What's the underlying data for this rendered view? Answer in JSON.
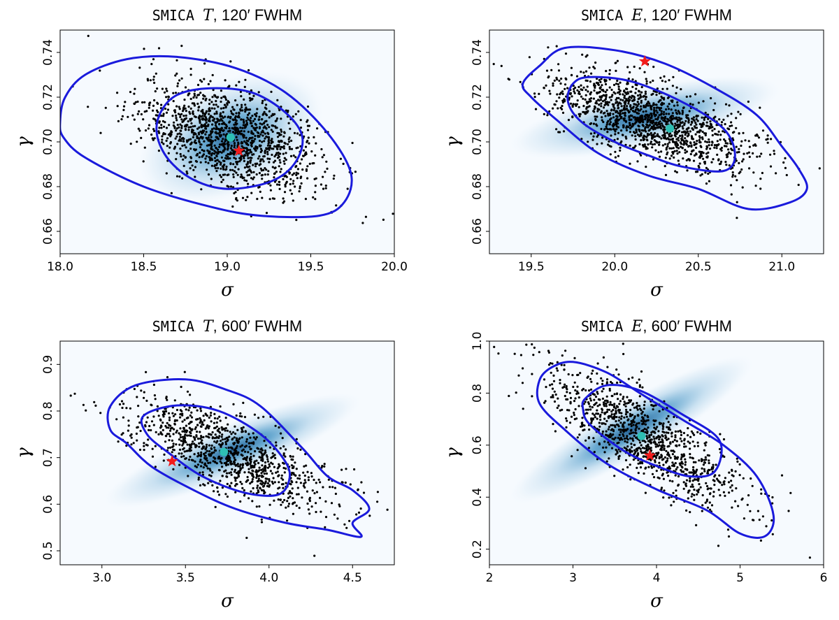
{
  "chart_data": [
    {
      "type": "scatter",
      "title": {
        "prefix": "SMICA",
        "field": "T",
        "suffix": ", 120′ FWHM"
      },
      "xlabel": "σ",
      "ylabel": "γ",
      "xlim": [
        18.0,
        20.0
      ],
      "ylim": [
        0.65,
        0.75
      ],
      "xticks": [
        18.0,
        18.5,
        19.0,
        19.5,
        20.0
      ],
      "xtick_labels": [
        "18.0",
        "18.5",
        "19.0",
        "19.5",
        "20.0"
      ],
      "yticks": [
        0.66,
        0.68,
        0.7,
        0.72,
        0.74
      ],
      "ytick_labels": [
        "0.66",
        "0.68",
        "0.70",
        "0.72",
        "0.74"
      ],
      "scatter": {
        "center": [
          19.02,
          0.702
        ],
        "spread": [
          0.27,
          0.012
        ],
        "rho": -0.45,
        "n": 1400
      },
      "density": {
        "center": [
          19.02,
          0.702
        ],
        "radii": [
          0.3,
          0.013
        ],
        "angle": -25
      },
      "contours": [
        {
          "points": [
            [
              18.0,
              0.709
            ],
            [
              18.03,
              0.72
            ],
            [
              18.15,
              0.73
            ],
            [
              18.4,
              0.737
            ],
            [
              18.7,
              0.738
            ],
            [
              19.05,
              0.733
            ],
            [
              19.35,
              0.722
            ],
            [
              19.6,
              0.704
            ],
            [
              19.74,
              0.686
            ],
            [
              19.7,
              0.673
            ],
            [
              19.55,
              0.667
            ],
            [
              19.2,
              0.667
            ],
            [
              18.9,
              0.671
            ],
            [
              18.5,
              0.68
            ],
            [
              18.15,
              0.693
            ],
            [
              18.02,
              0.702
            ]
          ]
        },
        {
          "points": [
            [
              18.6,
              0.713
            ],
            [
              18.7,
              0.721
            ],
            [
              18.9,
              0.724
            ],
            [
              19.15,
              0.722
            ],
            [
              19.35,
              0.713
            ],
            [
              19.45,
              0.702
            ],
            [
              19.4,
              0.69
            ],
            [
              19.25,
              0.682
            ],
            [
              19.0,
              0.679
            ],
            [
              18.8,
              0.683
            ],
            [
              18.65,
              0.692
            ],
            [
              18.58,
              0.703
            ]
          ]
        }
      ],
      "mean": [
        19.02,
        0.702
      ],
      "star": [
        19.07,
        0.696
      ]
    },
    {
      "type": "scatter",
      "title": {
        "prefix": "SMICA",
        "field": "E",
        "suffix": ", 120′ FWHM"
      },
      "xlabel": "σ",
      "ylabel": "γ",
      "xlim": [
        19.25,
        21.25
      ],
      "ylim": [
        0.65,
        0.75
      ],
      "xticks": [
        19.5,
        20.0,
        20.5,
        21.0
      ],
      "xtick_labels": [
        "19.5",
        "20.0",
        "20.5",
        "21.0"
      ],
      "yticks": [
        0.66,
        0.68,
        0.7,
        0.72,
        0.74
      ],
      "ytick_labels": [
        "0.66",
        "0.68",
        "0.70",
        "0.72",
        "0.74"
      ],
      "scatter": {
        "center": [
          20.2,
          0.71
        ],
        "spread": [
          0.3,
          0.011
        ],
        "rho": -0.65,
        "n": 1400
      },
      "density": {
        "center": [
          20.18,
          0.711
        ],
        "radii": [
          0.42,
          0.007
        ],
        "angle": -12
      },
      "contours": [
        {
          "points": [
            [
              19.45,
              0.726
            ],
            [
              19.55,
              0.734
            ],
            [
              19.7,
              0.742
            ],
            [
              20.0,
              0.741
            ],
            [
              20.3,
              0.735
            ],
            [
              20.6,
              0.724
            ],
            [
              20.85,
              0.712
            ],
            [
              21.0,
              0.698
            ],
            [
              21.1,
              0.688
            ],
            [
              21.15,
              0.679
            ],
            [
              21.05,
              0.673
            ],
            [
              20.8,
              0.67
            ],
            [
              20.5,
              0.679
            ],
            [
              20.2,
              0.685
            ],
            [
              19.9,
              0.695
            ],
            [
              19.65,
              0.71
            ],
            [
              19.5,
              0.72
            ]
          ]
        },
        {
          "points": [
            [
              19.75,
              0.726
            ],
            [
              19.85,
              0.729
            ],
            [
              20.1,
              0.727
            ],
            [
              20.4,
              0.718
            ],
            [
              20.65,
              0.706
            ],
            [
              20.72,
              0.694
            ],
            [
              20.65,
              0.687
            ],
            [
              20.4,
              0.689
            ],
            [
              20.2,
              0.694
            ],
            [
              20.0,
              0.7
            ],
            [
              19.8,
              0.709
            ],
            [
              19.72,
              0.718
            ]
          ]
        }
      ],
      "mean": [
        20.33,
        0.706
      ],
      "star": [
        20.18,
        0.736
      ]
    },
    {
      "type": "scatter",
      "title": {
        "prefix": "SMICA",
        "field": "T",
        "suffix": ", 600′ FWHM"
      },
      "xlabel": "σ",
      "ylabel": "γ",
      "xlim": [
        2.75,
        4.75
      ],
      "ylim": [
        0.47,
        0.95
      ],
      "xticks": [
        3.0,
        3.5,
        4.0,
        4.5
      ],
      "xtick_labels": [
        "3.0",
        "3.5",
        "4.0",
        "4.5"
      ],
      "yticks": [
        0.5,
        0.6,
        0.7,
        0.8,
        0.9
      ],
      "ytick_labels": [
        "0.5",
        "0.6",
        "0.7",
        "0.8",
        "0.9"
      ],
      "scatter": {
        "center": [
          3.75,
          0.71
        ],
        "spread": [
          0.3,
          0.06
        ],
        "rho": -0.72,
        "n": 1050
      },
      "density": {
        "center": [
          3.78,
          0.715
        ],
        "radii": [
          0.42,
          0.03
        ],
        "angle": -22
      },
      "contours": [
        {
          "points": [
            [
              3.05,
              0.81
            ],
            [
              3.2,
              0.855
            ],
            [
              3.5,
              0.868
            ],
            [
              3.75,
              0.845
            ],
            [
              3.95,
              0.81
            ],
            [
              4.2,
              0.72
            ],
            [
              4.35,
              0.66
            ],
            [
              4.5,
              0.63
            ],
            [
              4.6,
              0.59
            ],
            [
              4.5,
              0.56
            ],
            [
              4.55,
              0.53
            ],
            [
              4.35,
              0.545
            ],
            [
              4.1,
              0.56
            ],
            [
              3.8,
              0.59
            ],
            [
              3.55,
              0.63
            ],
            [
              3.3,
              0.68
            ],
            [
              3.15,
              0.73
            ],
            [
              3.05,
              0.76
            ]
          ]
        },
        {
          "points": [
            [
              3.25,
              0.79
            ],
            [
              3.45,
              0.812
            ],
            [
              3.7,
              0.8
            ],
            [
              3.95,
              0.75
            ],
            [
              4.1,
              0.69
            ],
            [
              4.12,
              0.65
            ],
            [
              4.05,
              0.62
            ],
            [
              3.85,
              0.625
            ],
            [
              3.6,
              0.66
            ],
            [
              3.4,
              0.71
            ],
            [
              3.27,
              0.75
            ]
          ]
        }
      ],
      "mean": [
        3.73,
        0.712
      ],
      "star": [
        3.42,
        0.692
      ]
    },
    {
      "type": "scatter",
      "title": {
        "prefix": "SMICA",
        "field": "E",
        "suffix": ", 600′ FWHM"
      },
      "xlabel": "σ",
      "ylabel": "γ",
      "xlim": [
        2.0,
        6.0
      ],
      "ylim": [
        0.14,
        1.0
      ],
      "xticks": [
        2,
        3,
        4,
        5,
        6
      ],
      "xtick_labels": [
        "2",
        "3",
        "4",
        "5",
        "6"
      ],
      "yticks": [
        0.2,
        0.4,
        0.6,
        0.8,
        1.0
      ],
      "ytick_labels": [
        "0.2",
        "0.4",
        "0.6",
        "0.8",
        "1.0"
      ],
      "scatter": {
        "center": [
          3.82,
          0.63
        ],
        "spread": [
          0.6,
          0.14
        ],
        "rho": -0.8,
        "n": 1100
      },
      "density": {
        "center": [
          3.7,
          0.66
        ],
        "radii": [
          0.85,
          0.055
        ],
        "angle": -30
      },
      "contours": [
        {
          "points": [
            [
              2.6,
              0.85
            ],
            [
              2.75,
              0.9
            ],
            [
              3.0,
              0.92
            ],
            [
              3.4,
              0.88
            ],
            [
              3.8,
              0.8
            ],
            [
              4.3,
              0.7
            ],
            [
              4.8,
              0.6
            ],
            [
              5.2,
              0.48
            ],
            [
              5.4,
              0.33
            ],
            [
              5.3,
              0.25
            ],
            [
              5.0,
              0.26
            ],
            [
              4.6,
              0.35
            ],
            [
              4.0,
              0.43
            ],
            [
              3.4,
              0.53
            ],
            [
              2.9,
              0.66
            ],
            [
              2.6,
              0.76
            ]
          ]
        },
        {
          "points": [
            [
              3.15,
              0.78
            ],
            [
              3.4,
              0.83
            ],
            [
              3.8,
              0.81
            ],
            [
              4.3,
              0.72
            ],
            [
              4.75,
              0.62
            ],
            [
              4.7,
              0.5
            ],
            [
              4.4,
              0.48
            ],
            [
              4.0,
              0.52
            ],
            [
              3.6,
              0.58
            ],
            [
              3.2,
              0.68
            ],
            [
              3.12,
              0.74
            ]
          ]
        }
      ],
      "mean": [
        3.82,
        0.635
      ],
      "star": [
        3.92,
        0.56
      ]
    }
  ]
}
